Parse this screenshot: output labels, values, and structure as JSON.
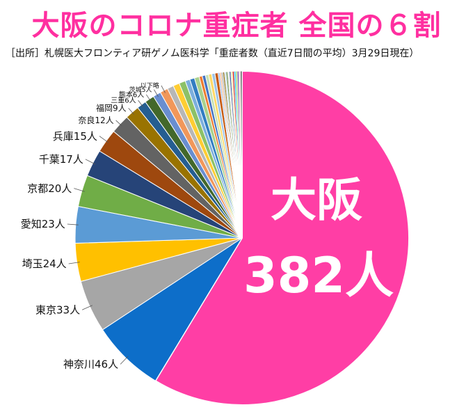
{
  "title": "大阪のコロナ重症者 全国の６割",
  "source": "［出所］札幌医大フロンティア研ゲノム医科学「重症者数（直近7日間の平均）3月29日現在）",
  "chart_data": {
    "type": "pie",
    "title": "大阪のコロナ重症者 全国の６割",
    "slices": [
      {
        "name": "大阪",
        "value": 382,
        "label": "",
        "color": "#ff3ea5"
      },
      {
        "name": "神奈川",
        "value": 46,
        "label": "神奈川46人",
        "color": "#0d6ec9"
      },
      {
        "name": "東京",
        "value": 33,
        "label": "東京33人",
        "color": "#a6a6a6"
      },
      {
        "name": "埼玉",
        "value": 24,
        "label": "埼玉24人",
        "color": "#ffc000"
      },
      {
        "name": "愛知",
        "value": 23,
        "label": "愛知23人",
        "color": "#5b9bd5"
      },
      {
        "name": "京都",
        "value": 20,
        "label": "京都20人",
        "color": "#70ad47"
      },
      {
        "name": "千葉",
        "value": 17,
        "label": "千葉17人",
        "color": "#264478"
      },
      {
        "name": "兵庫",
        "value": 15,
        "label": "兵庫15人",
        "color": "#9e480e"
      },
      {
        "name": "奈良",
        "value": 12,
        "label": "奈良12人",
        "color": "#636363"
      },
      {
        "name": "福岡",
        "value": 9,
        "label": "福岡9人",
        "color": "#997300"
      },
      {
        "name": "三重",
        "value": 6,
        "label": "三重6人",
        "color": "#255e91"
      },
      {
        "name": "熊本",
        "value": 6,
        "label": "熊本6人",
        "color": "#43682b"
      },
      {
        "name": "茨城",
        "value": 5,
        "label": "茨城5人",
        "color": "#698ed0"
      },
      {
        "name": "",
        "value": 5,
        "label": "以下略",
        "color": "#f1975a"
      },
      {
        "name": "",
        "value": 4,
        "label": "",
        "color": "#b7b7b7"
      },
      {
        "name": "",
        "value": 4,
        "label": "",
        "color": "#ffcd33"
      },
      {
        "name": "",
        "value": 4,
        "label": "",
        "color": "#8cc168"
      },
      {
        "name": "",
        "value": 3,
        "label": "",
        "color": "#7cafdd"
      },
      {
        "name": "",
        "value": 3,
        "label": "",
        "color": "#327dc2"
      },
      {
        "name": "",
        "value": 3,
        "label": "",
        "color": "#a9d18e"
      },
      {
        "name": "",
        "value": 2,
        "label": "",
        "color": "#ed7d31"
      },
      {
        "name": "",
        "value": 2,
        "label": "",
        "color": "#4472c4"
      },
      {
        "name": "",
        "value": 2,
        "label": "",
        "color": "#c5e0b4"
      },
      {
        "name": "",
        "value": 2,
        "label": "",
        "color": "#ffd966"
      },
      {
        "name": "",
        "value": 2,
        "label": "",
        "color": "#9dc3e6"
      },
      {
        "name": "",
        "value": 2,
        "label": "",
        "color": "#c55a11"
      },
      {
        "name": "",
        "value": 1,
        "label": "",
        "color": "#8faadc"
      },
      {
        "name": "",
        "value": 1,
        "label": "",
        "color": "#f4b183"
      },
      {
        "name": "",
        "value": 1,
        "label": "",
        "color": "#a5a5a5"
      },
      {
        "name": "",
        "value": 1,
        "label": "",
        "color": "#7f6000"
      },
      {
        "name": "",
        "value": 1,
        "label": "",
        "color": "#bdd7ee"
      },
      {
        "name": "",
        "value": 1,
        "label": "",
        "color": "#548235"
      },
      {
        "name": "",
        "value": 1,
        "label": "",
        "color": "#d9d9d9"
      },
      {
        "name": "",
        "value": 1,
        "label": "",
        "color": "#2f5597"
      },
      {
        "name": "",
        "value": 1,
        "label": "",
        "color": "#ffe699"
      },
      {
        "name": "",
        "value": 1,
        "label": "",
        "color": "#c00000"
      },
      {
        "name": "",
        "value": 1,
        "label": "",
        "color": "#00b0f0"
      },
      {
        "name": "",
        "value": 1,
        "label": "",
        "color": "#92d050"
      },
      {
        "name": "",
        "value": 1,
        "label": "",
        "color": "#7030a0"
      },
      {
        "name": "",
        "value": 1,
        "label": "",
        "color": "#ffc7ce"
      },
      {
        "name": "",
        "value": 1,
        "label": "",
        "color": "#404040"
      }
    ],
    "callout": {
      "line1": "大阪",
      "line2": "382人",
      "color": "#ffffff"
    },
    "start": "12 o'clock",
    "direction": "clockwise",
    "legend": "none"
  },
  "colors": {
    "title": "#ff2fa0",
    "slice_border": "#ffffff"
  }
}
